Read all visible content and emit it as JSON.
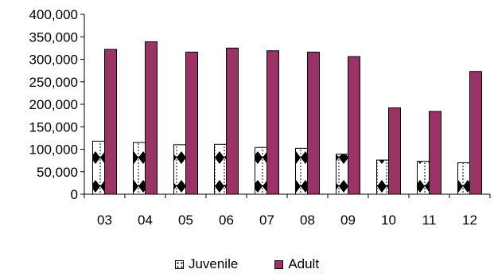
{
  "chart_data": {
    "type": "bar",
    "categories": [
      "03",
      "04",
      "05",
      "06",
      "07",
      "08",
      "09",
      "10",
      "11",
      "12"
    ],
    "series": [
      {
        "name": "Juvenile",
        "values": [
          118000,
          115000,
          110000,
          111000,
          104000,
          102000,
          89000,
          76000,
          73000,
          70000
        ]
      },
      {
        "name": "Adult",
        "values": [
          322000,
          339000,
          316000,
          325000,
          319000,
          316000,
          306000,
          192000,
          184000,
          273000
        ]
      }
    ],
    "ylim": [
      0,
      400000
    ],
    "yticks": [
      0,
      50000,
      100000,
      150000,
      200000,
      250000,
      300000,
      350000,
      400000
    ],
    "ytick_labels": [
      "0",
      "50,000",
      "100,000",
      "150,000",
      "200,000",
      "250,000",
      "300,000",
      "350,000",
      "400,000"
    ],
    "grid": false,
    "legend_position": "bottom",
    "colors": {
      "juvenile": "#ffffff",
      "adult": "#993366",
      "axis": "#000000"
    }
  },
  "legend": {
    "juvenile_label": "Juvenile",
    "adult_label": "Adult"
  }
}
